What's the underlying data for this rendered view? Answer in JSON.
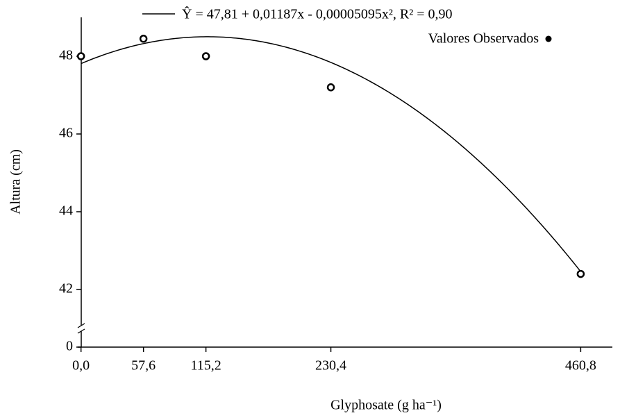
{
  "chart_data": {
    "type": "scatter",
    "xlabel": "Glyphosate (g ha⁻¹)",
    "ylabel": "Altura (cm)",
    "x": [
      0,
      57.6,
      115.2,
      230.4,
      460.8
    ],
    "series": [
      {
        "name": "Valores Observados",
        "color": "#000000",
        "values": [
          48.0,
          48.45,
          48.0,
          47.2,
          42.4
        ]
      }
    ],
    "fit": {
      "name": "Ŷ = 47,81 + 0,01187x - 0,00005095x², R² = 0,90",
      "coefficients": [
        47.81,
        0.01187,
        -5.095e-05
      ],
      "color": "#000000"
    },
    "xlim": [
      -3,
      490
    ],
    "ylim": [
      41,
      49
    ],
    "y_break": true,
    "xticks": [
      {
        "value": 0,
        "label": "0,0"
      },
      {
        "value": 57.6,
        "label": "57,6"
      },
      {
        "value": 115.2,
        "label": "115,2"
      },
      {
        "value": 230.4,
        "label": "230,4"
      },
      {
        "value": 460.8,
        "label": "460,8"
      }
    ],
    "yticks": [
      0,
      42,
      44,
      46,
      48
    ],
    "legend": "upper right"
  }
}
